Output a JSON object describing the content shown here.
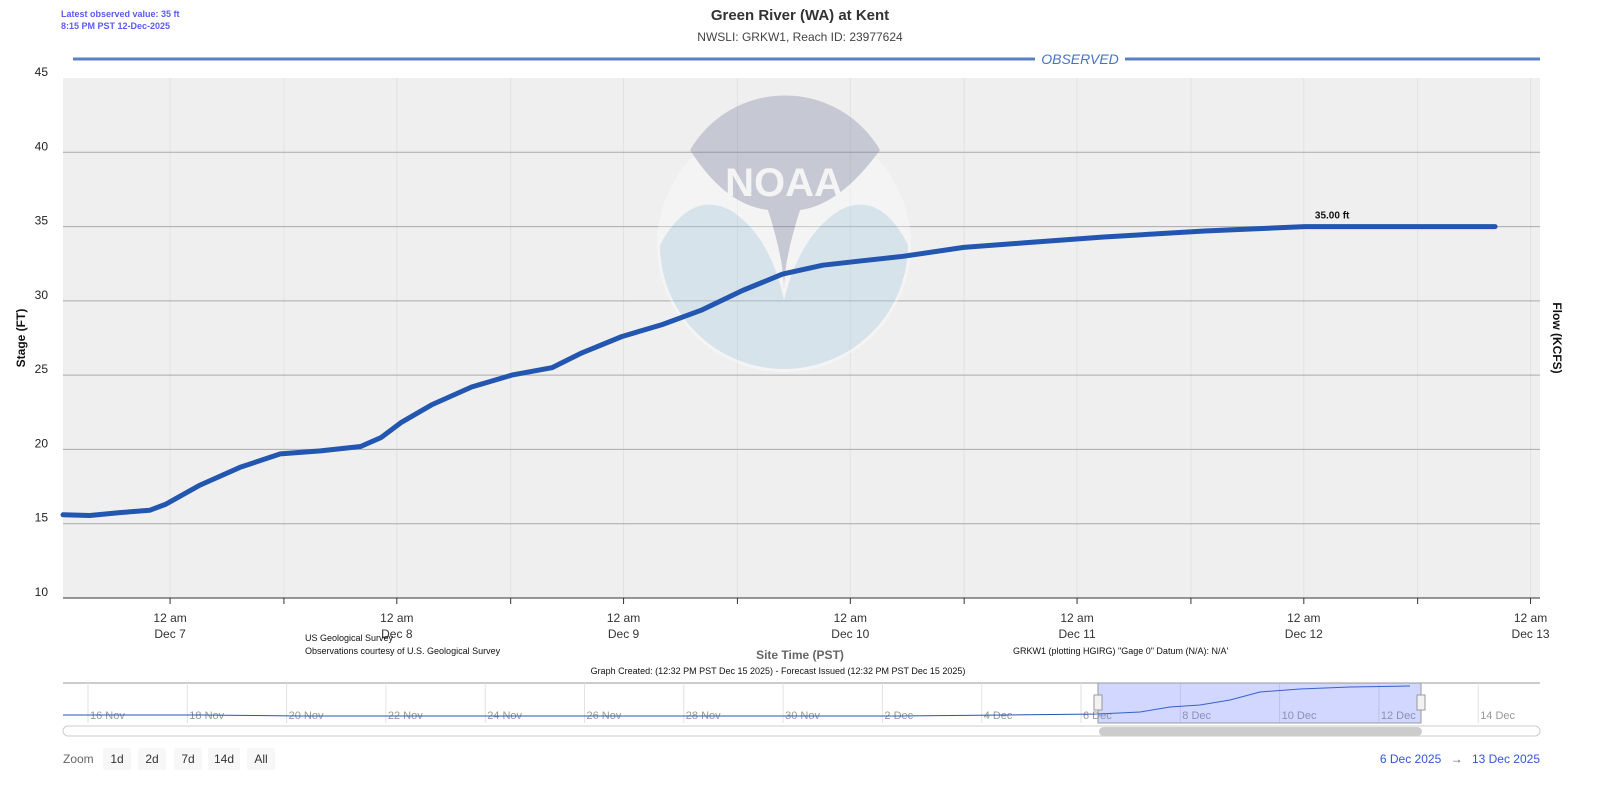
{
  "header": {
    "latest_value": "Latest observed value: 35 ft",
    "latest_time": "8:15 PM PST 12-Dec-2025",
    "title": "Green River (WA) at Kent",
    "subtitle": "NWSLI: GRKW1, Reach ID: 23977624"
  },
  "chart_data": {
    "type": "line",
    "title": "Green River (WA) at Kent",
    "subtitle": "NWSLI: GRKW1, Reach ID: 23977624",
    "band_label": "OBSERVED",
    "xlabel": "Site Time (PST)",
    "ylabel": "Stage (FT)",
    "y2label": "Flow (KCFS)",
    "ylim": [
      10,
      45
    ],
    "yticks": [
      10,
      15,
      20,
      25,
      30,
      35,
      40,
      45
    ],
    "xlim": [
      "2025-12-06T12:40",
      "2025-12-13T01:00"
    ],
    "xticks": [
      {
        "time": "2025-12-07T00:00",
        "line1": "12 am",
        "line2": "Dec 7"
      },
      {
        "time": "2025-12-08T00:00",
        "line1": "12 am",
        "line2": "Dec 8"
      },
      {
        "time": "2025-12-09T00:00",
        "line1": "12 am",
        "line2": "Dec 9"
      },
      {
        "time": "2025-12-10T00:00",
        "line1": "12 am",
        "line2": "Dec 10"
      },
      {
        "time": "2025-12-11T00:00",
        "line1": "12 am",
        "line2": "Dec 11"
      },
      {
        "time": "2025-12-12T00:00",
        "line1": "12 am",
        "line2": "Dec 12"
      },
      {
        "time": "2025-12-13T00:00",
        "line1": "12 am",
        "line2": "Dec 13"
      }
    ],
    "grid": true,
    "series_color": "#2356b0",
    "series": [
      {
        "points": [
          [
            "2025-12-06T12:40",
            15.6
          ],
          [
            "2025-12-06T15:30",
            15.55
          ],
          [
            "2025-12-06T18:40",
            15.75
          ],
          [
            "2025-12-06T21:50",
            15.9
          ],
          [
            "2025-12-06T23:30",
            16.3
          ],
          [
            "2025-12-07T03:10",
            17.6
          ],
          [
            "2025-12-07T07:25",
            18.8
          ],
          [
            "2025-12-07T11:40",
            19.7
          ],
          [
            "2025-12-07T15:55",
            19.9
          ],
          [
            "2025-12-07T20:10",
            20.2
          ],
          [
            "2025-12-07T22:20",
            20.8
          ],
          [
            "2025-12-08T00:25",
            21.8
          ],
          [
            "2025-12-08T03:40",
            23.0
          ],
          [
            "2025-12-08T07:55",
            24.2
          ],
          [
            "2025-12-08T12:10",
            25.0
          ],
          [
            "2025-12-08T16:25",
            25.5
          ],
          [
            "2025-12-08T19:35",
            26.5
          ],
          [
            "2025-12-08T23:50",
            27.6
          ],
          [
            "2025-12-09T04:05",
            28.4
          ],
          [
            "2025-12-09T08:20",
            29.4
          ],
          [
            "2025-12-09T12:35",
            30.7
          ],
          [
            "2025-12-09T16:50",
            31.8
          ],
          [
            "2025-12-09T21:05",
            32.4
          ],
          [
            "2025-12-10T01:20",
            32.7
          ],
          [
            "2025-12-10T05:35",
            33.0
          ],
          [
            "2025-12-10T12:00",
            33.6
          ],
          [
            "2025-12-10T18:20",
            33.9
          ],
          [
            "2025-12-11T02:50",
            34.3
          ],
          [
            "2025-12-11T13:30",
            34.7
          ],
          [
            "2025-12-12T00:05",
            35.0
          ],
          [
            "2025-12-12T06:30",
            35.0
          ],
          [
            "2025-12-12T20:15",
            35.0
          ]
        ]
      }
    ],
    "annotation": {
      "time": "2025-12-12T03:00",
      "value": 35.0,
      "text": "35.00 ft"
    }
  },
  "credits": {
    "source": "US Geological Survey",
    "courtesy": "Observations courtesy of U.S. Geological Survey",
    "datum": "GRKW1 (plotting HGIRG) \"Gage 0\" Datum (N/A): N/A'",
    "created": "Graph Created: (12:32 PM PST Dec 15 2025) - Forecast Issued (12:32 PM PST Dec 15 2025)"
  },
  "watermark": "NOAA",
  "navigator": {
    "labels": [
      "16 Nov",
      "18 Nov",
      "20 Nov",
      "22 Nov",
      "24 Nov",
      "26 Nov",
      "28 Nov",
      "30 Nov",
      "2 Dec",
      "4 Dec",
      "6 Dec",
      "8 Dec",
      "10 Dec",
      "12 Dec",
      "14 Dec"
    ],
    "selection": [
      "2025-12-06",
      "2025-12-13"
    ]
  },
  "controls": {
    "zoom_label": "Zoom",
    "buttons": [
      "1d",
      "2d",
      "7d",
      "14d",
      "All"
    ],
    "range_from": "6 Dec 2025",
    "range_arrow": "→",
    "range_to": "13 Dec 2025"
  }
}
